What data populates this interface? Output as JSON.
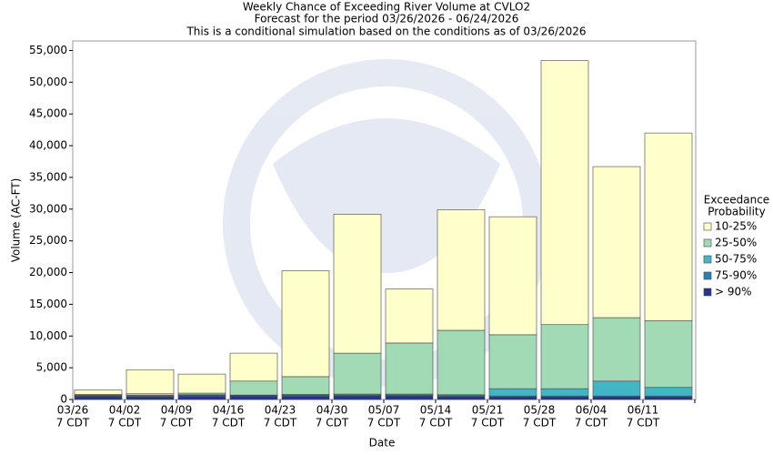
{
  "chart_data": {
    "type": "stacked_bar",
    "title": "Weekly Chance of Exceeding River Volume at CVLO2",
    "subtitle": "Forecast for the period 03/26/2026 - 06/24/2026",
    "note": "This is a conditional simulation based on the conditions as of 03/26/2026",
    "y_label": "Volume (AC-FT)",
    "x_label": "Date",
    "legend_title_lines": [
      "Exceedance",
      "Probability"
    ],
    "categories": [
      "03/26",
      "04/02",
      "04/09",
      "04/16",
      "04/23",
      "04/30",
      "05/07",
      "05/14",
      "05/21",
      "05/28",
      "06/04",
      "06/11"
    ],
    "category_sublabels": [
      "7 CDT",
      "7 CDT",
      "7 CDT",
      "7 CDT",
      "7 CDT",
      "7 CDT",
      "7 CDT",
      "7 CDT",
      "7 CDT",
      "7 CDT",
      "7 CDT",
      "7 CDT"
    ],
    "series": [
      {
        "name": "> 90%",
        "color": "#253494",
        "values": [
          450,
          400,
          500,
          500,
          500,
          550,
          550,
          450,
          400,
          400,
          400,
          400
        ]
      },
      {
        "name": "75-90%",
        "color": "#2c7fb8",
        "values": [
          100,
          150,
          150,
          100,
          150,
          150,
          150,
          150,
          150,
          150,
          150,
          150
        ]
      },
      {
        "name": "50-75%",
        "color": "#41b6c4",
        "values": [
          100,
          100,
          100,
          100,
          150,
          150,
          150,
          150,
          1150,
          1150,
          2350,
          1350
        ]
      },
      {
        "name": "25-50%",
        "color": "#a1dab4",
        "values": [
          150,
          250,
          250,
          2200,
          2800,
          6450,
          8050,
          10150,
          8500,
          10100,
          10000,
          10500
        ]
      },
      {
        "name": "10-25%",
        "color": "#ffffcc",
        "values": [
          700,
          3800,
          3000,
          4400,
          16700,
          21900,
          8500,
          19000,
          18600,
          41600,
          23800,
          29600
        ]
      }
    ],
    "ylim": [
      0,
      56500
    ],
    "yticks": [
      0,
      {
        "value": 5000,
        "label": "5,000"
      },
      {
        "value": 10000,
        "label": "10,000"
      },
      {
        "value": 15000,
        "label": "15,000"
      },
      {
        "value": 20000,
        "label": "20,000"
      },
      {
        "value": 25000,
        "label": "25,000"
      },
      {
        "value": 30000,
        "label": "30,000"
      },
      {
        "value": 35000,
        "label": "35,000"
      },
      {
        "value": 40000,
        "label": "40,000"
      },
      {
        "value": 45000,
        "label": "45,000"
      },
      {
        "value": 50000,
        "label": "50,000"
      },
      {
        "value": 55000,
        "label": "55,000"
      }
    ],
    "legend": "right"
  }
}
